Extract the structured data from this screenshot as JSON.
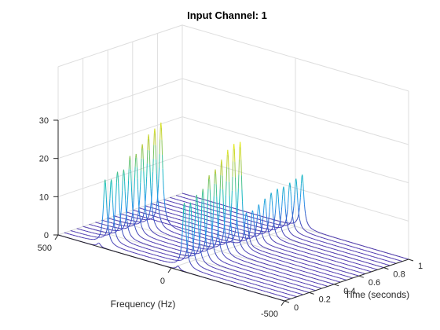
{
  "chart_data": {
    "type": "line",
    "subtype": "3d-waterfall",
    "title": "Input Channel: 1",
    "xlabel": "Frequency (Hz)",
    "ylabel": "Time (seconds)",
    "zlabel": "",
    "xlim": [
      -500,
      500
    ],
    "ylim": [
      0,
      1
    ],
    "zlim": [
      0,
      30
    ],
    "xticks": [
      500,
      0,
      -500
    ],
    "xtick_labels": [
      "500",
      "0",
      "-500"
    ],
    "yticks": [
      0,
      0.2,
      0.4,
      0.6,
      0.8,
      1
    ],
    "ytick_labels": [
      "0",
      "0.2",
      "0.4",
      "0.6",
      "0.8",
      "1"
    ],
    "zticks": [
      0,
      10,
      20,
      30
    ],
    "ztick_labels": [
      "0",
      "10",
      "20",
      "30"
    ],
    "grid": true,
    "colormap": "parula",
    "colors": {
      "line_low": "#3e26a8",
      "line_mid": "#12beb9",
      "line_high": "#f9fb15",
      "axis": "#262626",
      "grid": "#dedede"
    },
    "series": [
      {
        "t": 0.0,
        "peaks": [
          {
            "f": 320,
            "amp": 1.0
          },
          {
            "f": -30,
            "amp": 1.0
          }
        ]
      },
      {
        "t": 0.05,
        "peaks": [
          {
            "f": 320,
            "amp": 17.0
          },
          {
            "f": -30,
            "amp": 17.0
          }
        ]
      },
      {
        "t": 0.1,
        "peaks": [
          {
            "f": 320,
            "amp": 16.5
          },
          {
            "f": -30,
            "amp": 16.5
          }
        ]
      },
      {
        "t": 0.15,
        "peaks": [
          {
            "f": 320,
            "amp": 18.0
          },
          {
            "f": -30,
            "amp": 18.0
          }
        ]
      },
      {
        "t": 0.2,
        "peaks": [
          {
            "f": 320,
            "amp": 18.0
          },
          {
            "f": -30,
            "amp": 19.0
          }
        ]
      },
      {
        "t": 0.25,
        "peaks": [
          {
            "f": 320,
            "amp": 21.0
          },
          {
            "f": -30,
            "amp": 22.0
          }
        ]
      },
      {
        "t": 0.3,
        "peaks": [
          {
            "f": 320,
            "amp": 21.0
          },
          {
            "f": -30,
            "amp": 23.0
          }
        ]
      },
      {
        "t": 0.35,
        "peaks": [
          {
            "f": 320,
            "amp": 23.0
          },
          {
            "f": -30,
            "amp": 25.0
          }
        ]
      },
      {
        "t": 0.4,
        "peaks": [
          {
            "f": 320,
            "amp": 25.0
          },
          {
            "f": -30,
            "amp": 27.0
          }
        ]
      },
      {
        "t": 0.45,
        "peaks": [
          {
            "f": 320,
            "amp": 26.0
          },
          {
            "f": -30,
            "amp": 28.0
          }
        ]
      },
      {
        "t": 0.5,
        "peaks": [
          {
            "f": 320,
            "amp": 27.0
          },
          {
            "f": -30,
            "amp": 28.0
          }
        ]
      },
      {
        "t": 0.55,
        "peaks": [
          {
            "f": -30,
            "amp": 9.0
          }
        ]
      },
      {
        "t": 0.6,
        "peaks": [
          {
            "f": -30,
            "amp": 9.0
          }
        ]
      },
      {
        "t": 0.65,
        "peaks": [
          {
            "f": -30,
            "amp": 10.0
          }
        ]
      },
      {
        "t": 0.7,
        "peaks": [
          {
            "f": -30,
            "amp": 11.0
          }
        ]
      },
      {
        "t": 0.75,
        "peaks": [
          {
            "f": -30,
            "amp": 12.0
          }
        ]
      },
      {
        "t": 0.8,
        "peaks": [
          {
            "f": -30,
            "amp": 12.5
          }
        ]
      },
      {
        "t": 0.85,
        "peaks": [
          {
            "f": -30,
            "amp": 12.5
          }
        ]
      },
      {
        "t": 0.9,
        "peaks": [
          {
            "f": -30,
            "amp": 13.0
          }
        ]
      },
      {
        "t": 0.95,
        "peaks": [
          {
            "f": -30,
            "amp": 13.5
          }
        ]
      },
      {
        "t": 1.0,
        "peaks": [
          {
            "f": -30,
            "amp": 14.0
          }
        ]
      }
    ]
  }
}
